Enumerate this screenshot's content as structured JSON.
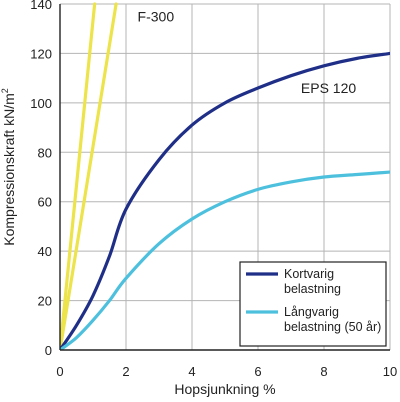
{
  "chart_data": {
    "type": "line",
    "xlabel": "Hopsjunkning %",
    "ylabel": "Kompressionskraft kN/m",
    "ylabel_sup": "2",
    "xlim": [
      0,
      10
    ],
    "ylim": [
      0,
      140
    ],
    "x_ticks": [
      0,
      2,
      4,
      6,
      8,
      10
    ],
    "y_ticks": [
      0,
      20,
      40,
      60,
      80,
      100,
      120,
      140
    ],
    "grid": true,
    "legend_position": "bottom-right",
    "annotations": [
      {
        "text": "F-300",
        "x": 2.35,
        "y": 133
      },
      {
        "text": "EPS 120",
        "x": 7.3,
        "y": 104
      }
    ],
    "series": [
      {
        "name": "Kortvarig belastning",
        "legend_lines": [
          "Kortvarig",
          "belastning"
        ],
        "in_legend": true,
        "color": "#1f2f87",
        "points": [
          [
            0,
            0
          ],
          [
            0.5,
            10
          ],
          [
            1,
            22
          ],
          [
            1.5,
            38
          ],
          [
            2,
            57
          ],
          [
            3,
            77
          ],
          [
            4,
            91
          ],
          [
            5,
            100
          ],
          [
            6,
            106
          ],
          [
            7,
            111
          ],
          [
            8,
            115
          ],
          [
            9,
            118
          ],
          [
            10,
            120
          ]
        ]
      },
      {
        "name": "Långvarig belastning (50 år)",
        "legend_lines": [
          "Långvarig",
          "belastning (50 år)"
        ],
        "in_legend": true,
        "color": "#4dc0de",
        "points": [
          [
            0,
            0
          ],
          [
            0.5,
            5
          ],
          [
            1,
            12
          ],
          [
            1.5,
            20
          ],
          [
            2,
            29
          ],
          [
            3,
            43
          ],
          [
            4,
            53
          ],
          [
            5,
            60
          ],
          [
            6,
            65
          ],
          [
            7,
            68
          ],
          [
            8,
            70
          ],
          [
            9,
            71
          ],
          [
            10,
            72
          ]
        ]
      },
      {
        "name": "",
        "in_legend": false,
        "color": "#ece44a",
        "points": [
          [
            0,
            0
          ],
          [
            1.05,
            140
          ]
        ]
      },
      {
        "name": "",
        "in_legend": false,
        "color": "#ece44a",
        "points": [
          [
            0,
            0
          ],
          [
            1.7,
            140
          ]
        ]
      }
    ]
  }
}
